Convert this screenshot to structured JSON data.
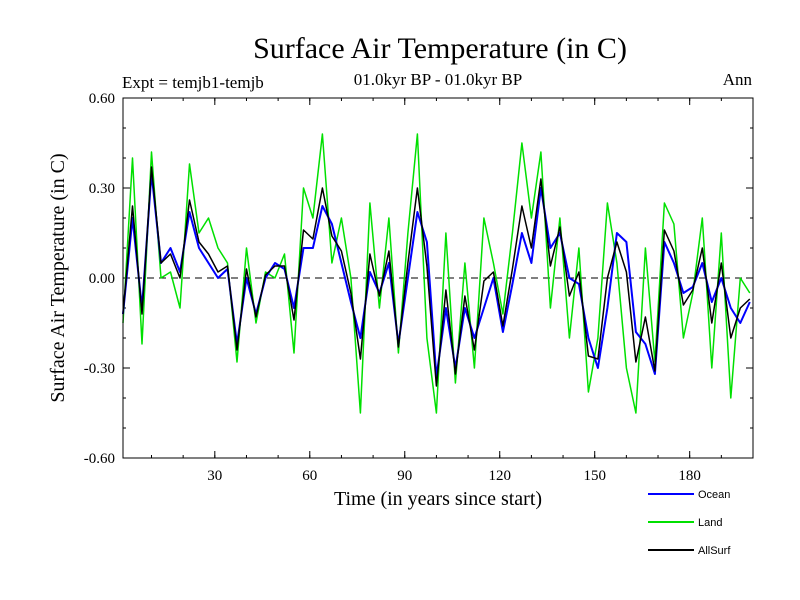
{
  "chart_data": {
    "type": "line",
    "title": "Surface Air Temperature (in C)",
    "subtitle": "01.0kyr BP - 01.0kyr BP",
    "left_label": "Expt = temjb1-temjb",
    "right_label": "Ann",
    "xlabel": "Time (in years since start)",
    "ylabel": "Surface Air Temperature (in C)",
    "xlim": [
      1,
      200
    ],
    "ylim": [
      -0.6,
      0.6
    ],
    "x_ticks": [
      30,
      60,
      90,
      120,
      150,
      180
    ],
    "x_tick_labels": [
      "30",
      "60",
      "90",
      "120",
      "150",
      "180"
    ],
    "y_ticks": [
      0.6,
      0.3,
      0.0,
      -0.3,
      -0.6
    ],
    "y_tick_labels": [
      "0.60",
      "0.30",
      "0.00",
      "-0.30",
      "-0.60"
    ],
    "zero_line": true,
    "legend_position": "bottom-right",
    "series": [
      {
        "name": "Ocean",
        "color": "#0000ff",
        "x": [
          1,
          4,
          7,
          10,
          13,
          16,
          19,
          22,
          25,
          28,
          31,
          34,
          37,
          40,
          43,
          46,
          49,
          52,
          55,
          58,
          61,
          64,
          67,
          70,
          73,
          76,
          79,
          82,
          85,
          88,
          91,
          94,
          97,
          100,
          103,
          106,
          109,
          112,
          115,
          118,
          121,
          124,
          127,
          130,
          133,
          136,
          139,
          142,
          145,
          148,
          151,
          154,
          157,
          160,
          163,
          166,
          169,
          172,
          175,
          178,
          181,
          184,
          187,
          190,
          193,
          196,
          199
        ],
        "values": [
          -0.12,
          0.2,
          -0.1,
          0.35,
          0.05,
          0.1,
          0.02,
          0.22,
          0.1,
          0.05,
          0.0,
          0.03,
          -0.22,
          0.0,
          -0.12,
          0.0,
          0.05,
          0.03,
          -0.1,
          0.1,
          0.1,
          0.24,
          0.18,
          0.05,
          -0.08,
          -0.2,
          0.02,
          -0.05,
          0.05,
          -0.22,
          0.0,
          0.22,
          0.12,
          -0.33,
          -0.1,
          -0.3,
          -0.1,
          -0.2,
          -0.1,
          0.0,
          -0.18,
          -0.02,
          0.15,
          0.05,
          0.3,
          0.1,
          0.15,
          0.0,
          -0.02,
          -0.2,
          -0.3,
          -0.1,
          0.15,
          0.12,
          -0.18,
          -0.22,
          -0.32,
          0.12,
          0.05,
          -0.05,
          -0.03,
          0.05,
          -0.08,
          0.0,
          -0.1,
          -0.15,
          -0.08
        ]
      },
      {
        "name": "Land",
        "color": "#00e000",
        "x": [
          1,
          4,
          7,
          10,
          13,
          16,
          19,
          22,
          25,
          28,
          31,
          34,
          37,
          40,
          43,
          46,
          49,
          52,
          55,
          58,
          61,
          64,
          67,
          70,
          73,
          76,
          79,
          82,
          85,
          88,
          91,
          94,
          97,
          100,
          103,
          106,
          109,
          112,
          115,
          118,
          121,
          124,
          127,
          130,
          133,
          136,
          139,
          142,
          145,
          148,
          151,
          154,
          157,
          160,
          163,
          166,
          169,
          172,
          175,
          178,
          181,
          184,
          187,
          190,
          193,
          196,
          199
        ],
        "values": [
          -0.15,
          0.4,
          -0.22,
          0.42,
          0.0,
          0.02,
          -0.1,
          0.38,
          0.15,
          0.2,
          0.1,
          0.05,
          -0.28,
          0.1,
          -0.15,
          0.02,
          0.0,
          0.08,
          -0.25,
          0.3,
          0.2,
          0.48,
          0.05,
          0.2,
          0.0,
          -0.45,
          0.25,
          -0.1,
          0.2,
          -0.25,
          0.15,
          0.48,
          -0.2,
          -0.45,
          0.15,
          -0.35,
          0.05,
          -0.3,
          0.2,
          0.05,
          -0.12,
          0.15,
          0.45,
          0.2,
          0.42,
          -0.1,
          0.2,
          -0.2,
          0.1,
          -0.38,
          -0.2,
          0.25,
          0.05,
          -0.3,
          -0.45,
          0.1,
          -0.28,
          0.25,
          0.18,
          -0.2,
          -0.05,
          0.2,
          -0.3,
          0.15,
          -0.4,
          0.0,
          -0.05
        ]
      },
      {
        "name": "AllSurf",
        "color": "#000000",
        "x": [
          1,
          4,
          7,
          10,
          13,
          16,
          19,
          22,
          25,
          28,
          31,
          34,
          37,
          40,
          43,
          46,
          49,
          52,
          55,
          58,
          61,
          64,
          67,
          70,
          73,
          76,
          79,
          82,
          85,
          88,
          91,
          94,
          97,
          100,
          103,
          106,
          109,
          112,
          115,
          118,
          121,
          124,
          127,
          130,
          133,
          136,
          139,
          142,
          145,
          148,
          151,
          154,
          157,
          160,
          163,
          166,
          169,
          172,
          175,
          178,
          181,
          184,
          187,
          190,
          193,
          196,
          199
        ],
        "values": [
          -0.12,
          0.24,
          -0.12,
          0.37,
          0.05,
          0.08,
          0.0,
          0.26,
          0.12,
          0.08,
          0.02,
          0.04,
          -0.24,
          0.03,
          -0.13,
          0.01,
          0.04,
          0.04,
          -0.14,
          0.16,
          0.13,
          0.3,
          0.14,
          0.09,
          -0.05,
          -0.27,
          0.08,
          -0.06,
          0.09,
          -0.23,
          0.05,
          0.3,
          0.04,
          -0.36,
          -0.04,
          -0.32,
          -0.06,
          -0.24,
          -0.01,
          0.02,
          -0.16,
          0.03,
          0.24,
          0.1,
          0.33,
          0.04,
          0.17,
          -0.06,
          0.02,
          -0.26,
          -0.27,
          0.0,
          0.12,
          0.02,
          -0.28,
          -0.13,
          -0.31,
          0.16,
          0.09,
          -0.09,
          -0.04,
          0.1,
          -0.15,
          0.05,
          -0.2,
          -0.1,
          -0.07
        ]
      }
    ]
  }
}
